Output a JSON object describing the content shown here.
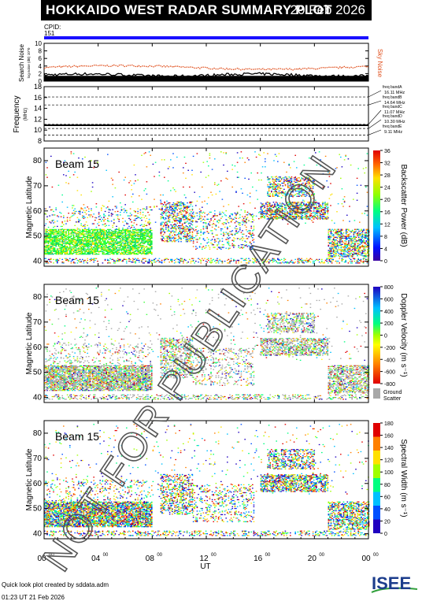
{
  "header": {
    "title": "HOKKAIDO WEST RADAR SUMMARY PLOT",
    "date": "20 Feb 2026"
  },
  "cpid": {
    "label": "CPID:",
    "value": "151"
  },
  "noise_panel": {
    "ylabel": "Search Noise",
    "ylabel_sub": "log noise (dB) 10^0",
    "right_label": "Sky Noise",
    "yticks": [
      "0",
      "2",
      "4",
      "6",
      "8",
      "10"
    ],
    "ylim": [
      0,
      10
    ],
    "sky_noise_color": "#e0501e"
  },
  "freq_panel": {
    "ylabel": "Frequency",
    "ylabel_sub": "(MHz)",
    "yticks": [
      "8",
      "10",
      "12",
      "14",
      "16",
      "18"
    ],
    "ylim": [
      8,
      18
    ],
    "bands": [
      {
        "name": "freq bandA",
        "value": "16.11 MHz",
        "mhz": 16.11
      },
      {
        "name": "freq bandB",
        "value": "14.64 MHz",
        "mhz": 14.64
      },
      {
        "name": "freq bandC",
        "value": "11.07 MHz",
        "mhz": 11.07
      },
      {
        "name": "freq bandD",
        "value": "10.30 MHz",
        "mhz": 10.3
      },
      {
        "name": "freq bandE",
        "value": "9.11 MHz",
        "mhz": 9.11
      }
    ],
    "operating_mhz": 10.9
  },
  "chart_data": [
    {
      "type": "heatmap",
      "beam": "Beam 15",
      "ylabel": "Magnetic Latitude",
      "ylim": [
        38,
        85
      ],
      "yticks": [
        "40",
        "50",
        "60",
        "70",
        "80"
      ],
      "colorbar": {
        "label": "Backscatter Power (dB)",
        "ticks": [
          "0",
          "4",
          "8",
          "12",
          "16",
          "20",
          "24",
          "28",
          "32",
          "36"
        ],
        "range": [
          0,
          36
        ]
      }
    },
    {
      "type": "heatmap",
      "beam": "Beam 15",
      "ylabel": "Magnetic Latitude",
      "ylim": [
        38,
        85
      ],
      "yticks": [
        "40",
        "50",
        "60",
        "70",
        "80"
      ],
      "colorbar": {
        "label": "Doppler Velocity (m s⁻¹)",
        "ticks": [
          "-800",
          "-600",
          "-400",
          "-200",
          "0",
          "200",
          "400",
          "600",
          "800"
        ],
        "range": [
          -800,
          800
        ],
        "ground_label": "Ground",
        "ground_label2": "Scatter"
      }
    },
    {
      "type": "heatmap",
      "beam": "Beam 15",
      "ylabel": "Magnetic Latitude",
      "ylim": [
        38,
        85
      ],
      "yticks": [
        "40",
        "50",
        "60",
        "70",
        "80"
      ],
      "colorbar": {
        "label": "Spectral Width (m s⁻¹)",
        "ticks": [
          "0",
          "20",
          "40",
          "60",
          "80",
          "100",
          "120",
          "140",
          "160",
          "180"
        ],
        "range": [
          0,
          180
        ]
      }
    }
  ],
  "xaxis": {
    "label": "UT",
    "ticks": [
      "00",
      "04",
      "08",
      "12",
      "16",
      "20",
      "00"
    ],
    "tick_sup": "00",
    "xlim": [
      0,
      24
    ]
  },
  "watermark": "NOT FOR PUBLICATION",
  "footer": {
    "line1": "Quick look plot created by sddata.adm",
    "line2": "01:23 UT 21 Feb 2026"
  },
  "logo": {
    "text": "ISEE"
  }
}
